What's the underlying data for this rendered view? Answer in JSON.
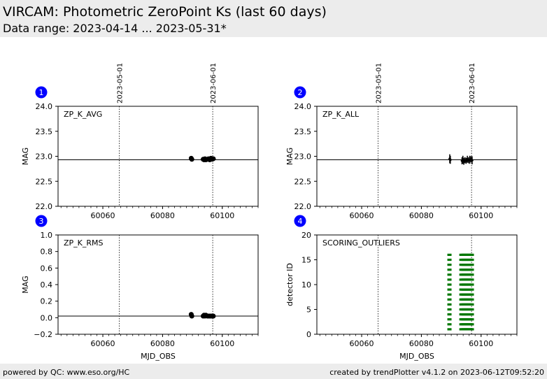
{
  "header": {
    "title": "VIRCAM: Photometric ZeroPoint Ks (last 60 days)",
    "subtitle": "Data range: 2023-04-14 ... 2023-05-31*"
  },
  "footer": {
    "left": "powered by QC: www.eso.org/HC",
    "right": "created by trendPlotter v4.1.2 on 2023-06-12T09:52:20"
  },
  "colors": {
    "marker": "#000000",
    "outlier": "#007700",
    "badge": "#0000ff",
    "header_bg": "#ececec"
  },
  "chart_data": [
    {
      "type": "scatter",
      "panel_number": "1",
      "label": "ZP_K_AVG",
      "ylabel": "MAG",
      "xlabel": "",
      "xlim": [
        60045,
        60112
      ],
      "ylim": [
        22.0,
        24.0
      ],
      "yticks": [
        "22.0",
        "22.5",
        "23.0",
        "23.5",
        "24.0"
      ],
      "ytick_values": [
        22.0,
        22.5,
        23.0,
        23.5,
        24.0
      ],
      "xticks": [
        "60060",
        "60080",
        "60100"
      ],
      "xtick_values": [
        60060,
        60080,
        60100
      ],
      "ref_line": 22.93,
      "date_markers": [
        {
          "x": 60065.5,
          "label": "2023-05-01"
        },
        {
          "x": 60096.8,
          "label": "2023-06-01"
        }
      ],
      "points": [
        {
          "x": 60089.6,
          "y": 22.96
        },
        {
          "x": 60089.8,
          "y": 22.94
        },
        {
          "x": 60093.6,
          "y": 22.94
        },
        {
          "x": 60093.9,
          "y": 22.93
        },
        {
          "x": 60094.2,
          "y": 22.95
        },
        {
          "x": 60094.5,
          "y": 22.93
        },
        {
          "x": 60095.0,
          "y": 22.94
        },
        {
          "x": 60095.4,
          "y": 22.95
        },
        {
          "x": 60095.8,
          "y": 22.93
        },
        {
          "x": 60096.2,
          "y": 22.96
        },
        {
          "x": 60096.6,
          "y": 22.94
        },
        {
          "x": 60097.0,
          "y": 22.95
        }
      ]
    },
    {
      "type": "errorbar",
      "panel_number": "2",
      "label": "ZP_K_ALL",
      "ylabel": "MAG",
      "xlabel": "",
      "xlim": [
        60045,
        60112
      ],
      "ylim": [
        22.0,
        24.0
      ],
      "yticks": [
        "22.0",
        "22.5",
        "23.0",
        "23.5",
        "24.0"
      ],
      "ytick_values": [
        22.0,
        22.5,
        23.0,
        23.5,
        24.0
      ],
      "xticks": [
        "60060",
        "60080",
        "60100"
      ],
      "xtick_values": [
        60060,
        60080,
        60100
      ],
      "ref_line": 22.93,
      "date_markers": [
        {
          "x": 60065.5,
          "label": "2023-05-01"
        },
        {
          "x": 60096.8,
          "label": "2023-06-01"
        }
      ],
      "points": [
        {
          "x": 60089.5,
          "y": 22.95,
          "err": 0.09
        },
        {
          "x": 60089.7,
          "y": 22.93,
          "err": 0.08
        },
        {
          "x": 60093.6,
          "y": 22.91,
          "err": 0.07
        },
        {
          "x": 60093.9,
          "y": 22.93,
          "err": 0.08
        },
        {
          "x": 60094.2,
          "y": 22.9,
          "err": 0.07
        },
        {
          "x": 60094.6,
          "y": 22.92,
          "err": 0.06
        },
        {
          "x": 60095.0,
          "y": 22.91,
          "err": 0.06
        },
        {
          "x": 60095.4,
          "y": 22.94,
          "err": 0.07
        },
        {
          "x": 60095.8,
          "y": 22.92,
          "err": 0.06
        },
        {
          "x": 60096.2,
          "y": 22.93,
          "err": 0.08
        },
        {
          "x": 60096.6,
          "y": 22.94,
          "err": 0.06
        },
        {
          "x": 60097.0,
          "y": 22.92,
          "err": 0.08
        }
      ]
    },
    {
      "type": "scatter",
      "panel_number": "3",
      "label": "ZP_K_RMS",
      "ylabel": "MAG",
      "xlabel": "MJD_OBS",
      "xlim": [
        60045,
        60112
      ],
      "ylim": [
        -0.2,
        1.0
      ],
      "yticks": [
        "−0.2",
        "0.0",
        "0.2",
        "0.4",
        "0.6",
        "0.8",
        "1.0"
      ],
      "ytick_values": [
        -0.2,
        0.0,
        0.2,
        0.4,
        0.6,
        0.8,
        1.0
      ],
      "xticks": [
        "60060",
        "60080",
        "60100"
      ],
      "xtick_values": [
        60060,
        60080,
        60100
      ],
      "ref_line": 0.02,
      "date_markers": [
        {
          "x": 60065.5,
          "label": ""
        },
        {
          "x": 60096.8,
          "label": ""
        }
      ],
      "points": [
        {
          "x": 60089.6,
          "y": 0.04
        },
        {
          "x": 60089.8,
          "y": 0.02
        },
        {
          "x": 60093.6,
          "y": 0.02
        },
        {
          "x": 60093.9,
          "y": 0.03
        },
        {
          "x": 60094.2,
          "y": 0.02
        },
        {
          "x": 60094.5,
          "y": 0.03
        },
        {
          "x": 60095.0,
          "y": 0.02
        },
        {
          "x": 60095.4,
          "y": 0.02
        },
        {
          "x": 60095.8,
          "y": 0.02
        },
        {
          "x": 60096.2,
          "y": 0.02
        },
        {
          "x": 60096.6,
          "y": 0.02
        },
        {
          "x": 60097.0,
          "y": 0.02
        }
      ]
    },
    {
      "type": "scatter",
      "panel_number": "4",
      "label": "SCORING_OUTLIERS",
      "ylabel": "detector ID",
      "xlabel": "MJD_OBS",
      "xlim": [
        60045,
        60112
      ],
      "ylim": [
        0,
        20
      ],
      "yticks": [
        "0",
        "5",
        "10",
        "15",
        "20"
      ],
      "ytick_values": [
        0,
        5,
        10,
        15,
        20
      ],
      "xticks": [
        "60060",
        "60080",
        "60100"
      ],
      "xtick_values": [
        60060,
        60080,
        60100
      ],
      "ref_line": null,
      "date_markers": [
        {
          "x": 60065.5,
          "label": ""
        },
        {
          "x": 60096.8,
          "label": ""
        }
      ],
      "outlier_x": [
        60089.4,
        60093.4,
        60093.9,
        60094.4,
        60094.9,
        60095.4,
        60095.9,
        60096.4,
        60096.9
      ],
      "outlier_detectors": [
        1,
        2,
        3,
        4,
        5,
        6,
        7,
        8,
        9,
        10,
        11,
        12,
        13,
        14,
        15,
        16
      ]
    }
  ]
}
